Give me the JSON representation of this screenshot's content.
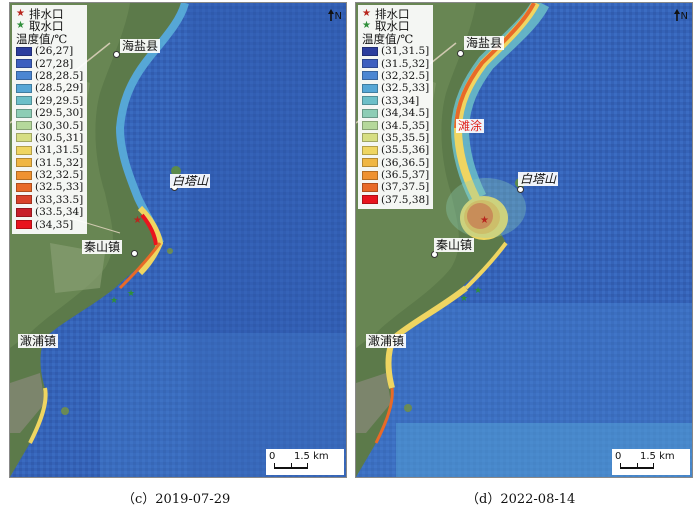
{
  "legend": {
    "outfall_label": "排水口",
    "intake_label": "取水口",
    "temp_title": "温度值/℃"
  },
  "north_label": "N",
  "scale_label": "1.5 km",
  "scale_zero": "0",
  "panels": [
    {
      "caption": "（c）2019-07-29",
      "bins": [
        {
          "label": "(26,27]",
          "color": "#2c3e9e"
        },
        {
          "label": "(27,28]",
          "color": "#3d5fbf"
        },
        {
          "label": "(28,28.5]",
          "color": "#4b86d2"
        },
        {
          "label": "(28.5,29]",
          "color": "#56a7d6"
        },
        {
          "label": "(29,29.5]",
          "color": "#6cbfc8"
        },
        {
          "label": "(29.5,30]",
          "color": "#8dcdb5"
        },
        {
          "label": "(30,30.5]",
          "color": "#b5d89b"
        },
        {
          "label": "(30.5,31]",
          "color": "#d6de83"
        },
        {
          "label": "(31,31.5]",
          "color": "#efd561"
        },
        {
          "label": "(31.5,32]",
          "color": "#f0b643"
        },
        {
          "label": "(32,32.5]",
          "color": "#ef9231"
        },
        {
          "label": "(32.5,33]",
          "color": "#e86a28"
        },
        {
          "label": "(33,33.5]",
          "color": "#d9422a"
        },
        {
          "label": "(33.5,34]",
          "color": "#c7202a"
        },
        {
          "label": "(34,35]",
          "color": "#e8141e"
        }
      ],
      "places": {
        "haiyan": "海盐县",
        "baitashan": "白塔山",
        "qinshan": "秦山镇",
        "ganpu": "澉浦镇"
      }
    },
    {
      "caption": "（d）2022-08-14",
      "bins": [
        {
          "label": "(31,31.5]",
          "color": "#2c3e9e"
        },
        {
          "label": "(31.5,32]",
          "color": "#3d5fbf"
        },
        {
          "label": "(32,32.5]",
          "color": "#4b86d2"
        },
        {
          "label": "(32.5,33]",
          "color": "#56a7d6"
        },
        {
          "label": "(33,34]",
          "color": "#6cbfc8"
        },
        {
          "label": "(34,34.5]",
          "color": "#8dcdb5"
        },
        {
          "label": "(34.5,35]",
          "color": "#b5d89b"
        },
        {
          "label": "(35,35.5]",
          "color": "#d6de83"
        },
        {
          "label": "(35.5,36]",
          "color": "#efd561"
        },
        {
          "label": "(36,36.5]",
          "color": "#f0b643"
        },
        {
          "label": "(36.5,37]",
          "color": "#ef9231"
        },
        {
          "label": "(37,37.5]",
          "color": "#e86a28"
        },
        {
          "label": "(37.5,38]",
          "color": "#e8141e"
        }
      ],
      "places": {
        "haiyan": "海盐县",
        "tantu": "滩涂",
        "baitashan": "白塔山",
        "qinshan": "秦山镇",
        "ganpu": "澉浦镇"
      }
    }
  ]
}
